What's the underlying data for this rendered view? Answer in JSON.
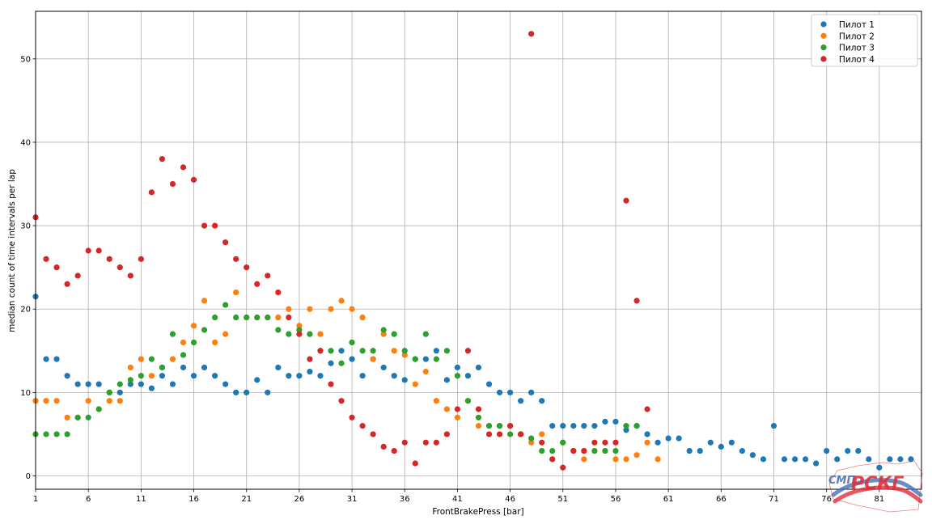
{
  "chart_data": {
    "type": "scatter",
    "xlabel": "FrontBrakePress [bar]",
    "ylabel": "median count of time intervals per lap",
    "xlim": [
      1,
      85
    ],
    "ylim": [
      -1.6,
      55.7
    ],
    "xticks": [
      1,
      6,
      11,
      16,
      21,
      26,
      31,
      36,
      41,
      46,
      51,
      56,
      61,
      66,
      71,
      76,
      81
    ],
    "yticks": [
      0,
      10,
      20,
      30,
      40,
      50
    ],
    "grid": true,
    "legend_position": "top-right",
    "series": [
      {
        "name": "Пилот 1",
        "color": "#1f77b4",
        "points": [
          [
            1,
            21.5
          ],
          [
            2,
            14
          ],
          [
            3,
            14
          ],
          [
            4,
            12
          ],
          [
            5,
            11
          ],
          [
            6,
            11
          ],
          [
            7,
            11
          ],
          [
            8,
            10
          ],
          [
            9,
            10
          ],
          [
            10,
            11
          ],
          [
            11,
            11
          ],
          [
            12,
            10.5
          ],
          [
            13,
            12
          ],
          [
            14,
            11
          ],
          [
            15,
            13
          ],
          [
            16,
            12
          ],
          [
            17,
            13
          ],
          [
            18,
            12
          ],
          [
            19,
            11
          ],
          [
            20,
            10
          ],
          [
            21,
            10
          ],
          [
            22,
            11.5
          ],
          [
            23,
            10
          ],
          [
            24,
            13
          ],
          [
            25,
            12
          ],
          [
            26,
            12
          ],
          [
            27,
            12.5
          ],
          [
            28,
            12
          ],
          [
            29,
            13.5
          ],
          [
            30,
            15
          ],
          [
            31,
            14
          ],
          [
            32,
            12
          ],
          [
            33,
            14
          ],
          [
            34,
            13
          ],
          [
            35,
            12
          ],
          [
            36,
            11.5
          ],
          [
            37,
            14
          ],
          [
            38,
            14
          ],
          [
            39,
            15
          ],
          [
            40,
            11.5
          ],
          [
            41,
            13
          ],
          [
            42,
            12
          ],
          [
            43,
            13
          ],
          [
            44,
            11
          ],
          [
            45,
            10
          ],
          [
            46,
            10
          ],
          [
            47,
            9
          ],
          [
            48,
            10
          ],
          [
            49,
            9
          ],
          [
            50,
            6
          ],
          [
            51,
            6
          ],
          [
            52,
            6
          ],
          [
            53,
            6
          ],
          [
            54,
            6
          ],
          [
            55,
            6.5
          ],
          [
            56,
            6.5
          ],
          [
            57,
            5.5
          ],
          [
            58,
            6
          ],
          [
            59,
            5
          ],
          [
            60,
            4
          ],
          [
            61,
            4.5
          ],
          [
            62,
            4.5
          ],
          [
            63,
            3
          ],
          [
            64,
            3
          ],
          [
            65,
            4
          ],
          [
            66,
            3.5
          ],
          [
            67,
            4
          ],
          [
            68,
            3
          ],
          [
            69,
            2.5
          ],
          [
            70,
            2
          ],
          [
            71,
            6
          ],
          [
            72,
            2
          ],
          [
            73,
            2
          ],
          [
            74,
            2
          ],
          [
            75,
            1.5
          ],
          [
            76,
            3
          ],
          [
            77,
            2
          ],
          [
            78,
            3
          ],
          [
            79,
            3
          ],
          [
            80,
            2
          ],
          [
            81,
            1
          ],
          [
            82,
            2
          ],
          [
            83,
            2
          ],
          [
            84,
            2
          ]
        ]
      },
      {
        "name": "Пилот 2",
        "color": "#ff7f0e",
        "points": [
          [
            1,
            9
          ],
          [
            2,
            9
          ],
          [
            3,
            9
          ],
          [
            4,
            7
          ],
          [
            5,
            7
          ],
          [
            6,
            9
          ],
          [
            7,
            8
          ],
          [
            8,
            9
          ],
          [
            9,
            9
          ],
          [
            10,
            13
          ],
          [
            11,
            14
          ],
          [
            12,
            12
          ],
          [
            13,
            13
          ],
          [
            14,
            14
          ],
          [
            15,
            16
          ],
          [
            16,
            18
          ],
          [
            17,
            21
          ],
          [
            18,
            16
          ],
          [
            19,
            17
          ],
          [
            20,
            22
          ],
          [
            21,
            19
          ],
          [
            22,
            19
          ],
          [
            23,
            19
          ],
          [
            24,
            19
          ],
          [
            25,
            20
          ],
          [
            26,
            18
          ],
          [
            27,
            20
          ],
          [
            28,
            17
          ],
          [
            29,
            20
          ],
          [
            30,
            21
          ],
          [
            31,
            20
          ],
          [
            32,
            19
          ],
          [
            33,
            14
          ],
          [
            34,
            17
          ],
          [
            35,
            15
          ],
          [
            36,
            14.5
          ],
          [
            37,
            11
          ],
          [
            38,
            12.5
          ],
          [
            39,
            9
          ],
          [
            40,
            8
          ],
          [
            41,
            7
          ],
          [
            42,
            9
          ],
          [
            43,
            6
          ],
          [
            44,
            6
          ],
          [
            45,
            6
          ],
          [
            46,
            6
          ],
          [
            47,
            5
          ],
          [
            48,
            4
          ],
          [
            49,
            5
          ],
          [
            50,
            2
          ],
          [
            51,
            4
          ],
          [
            52,
            3
          ],
          [
            53,
            2
          ],
          [
            54,
            3
          ],
          [
            55,
            3
          ],
          [
            56,
            2
          ],
          [
            57,
            2
          ],
          [
            58,
            2.5
          ],
          [
            59,
            4
          ],
          [
            60,
            2
          ]
        ]
      },
      {
        "name": "Пилот 3",
        "color": "#2ca02c",
        "points": [
          [
            1,
            5
          ],
          [
            2,
            5
          ],
          [
            3,
            5
          ],
          [
            4,
            5
          ],
          [
            5,
            7
          ],
          [
            6,
            7
          ],
          [
            7,
            8
          ],
          [
            8,
            10
          ],
          [
            9,
            11
          ],
          [
            10,
            11.5
          ],
          [
            11,
            12
          ],
          [
            12,
            14
          ],
          [
            13,
            13
          ],
          [
            14,
            17
          ],
          [
            15,
            14.5
          ],
          [
            16,
            16
          ],
          [
            17,
            17.5
          ],
          [
            18,
            19
          ],
          [
            19,
            20.5
          ],
          [
            20,
            19
          ],
          [
            21,
            19
          ],
          [
            22,
            19
          ],
          [
            23,
            19
          ],
          [
            24,
            17.5
          ],
          [
            25,
            17
          ],
          [
            26,
            17.5
          ],
          [
            27,
            17
          ],
          [
            28,
            15
          ],
          [
            29,
            15
          ],
          [
            30,
            13.5
          ],
          [
            31,
            16
          ],
          [
            32,
            15
          ],
          [
            33,
            15
          ],
          [
            34,
            17.5
          ],
          [
            35,
            17
          ],
          [
            36,
            15
          ],
          [
            37,
            14
          ],
          [
            38,
            17
          ],
          [
            39,
            14
          ],
          [
            40,
            15
          ],
          [
            41,
            12
          ],
          [
            42,
            9
          ],
          [
            43,
            7
          ],
          [
            44,
            6
          ],
          [
            45,
            6
          ],
          [
            46,
            5
          ],
          [
            47,
            5
          ],
          [
            48,
            4.5
          ],
          [
            49,
            3
          ],
          [
            50,
            3
          ],
          [
            51,
            4
          ],
          [
            52,
            3
          ],
          [
            53,
            3
          ],
          [
            54,
            3
          ],
          [
            55,
            3
          ],
          [
            56,
            3
          ],
          [
            57,
            6
          ],
          [
            58,
            6
          ]
        ]
      },
      {
        "name": "Пилот 4",
        "color": "#d62728",
        "points": [
          [
            1,
            31
          ],
          [
            2,
            26
          ],
          [
            3,
            25
          ],
          [
            4,
            23
          ],
          [
            5,
            24
          ],
          [
            6,
            27
          ],
          [
            7,
            27
          ],
          [
            8,
            26
          ],
          [
            9,
            25
          ],
          [
            10,
            24
          ],
          [
            11,
            26
          ],
          [
            12,
            34
          ],
          [
            13,
            38
          ],
          [
            14,
            35
          ],
          [
            15,
            37
          ],
          [
            16,
            35.5
          ],
          [
            17,
            30
          ],
          [
            18,
            30
          ],
          [
            19,
            28
          ],
          [
            20,
            26
          ],
          [
            21,
            25
          ],
          [
            22,
            23
          ],
          [
            23,
            24
          ],
          [
            24,
            22
          ],
          [
            25,
            19
          ],
          [
            26,
            17
          ],
          [
            27,
            14
          ],
          [
            28,
            15
          ],
          [
            29,
            11
          ],
          [
            30,
            9
          ],
          [
            31,
            7
          ],
          [
            32,
            6
          ],
          [
            33,
            5
          ],
          [
            34,
            3.5
          ],
          [
            35,
            3
          ],
          [
            36,
            4
          ],
          [
            37,
            1.5
          ],
          [
            38,
            4
          ],
          [
            39,
            4
          ],
          [
            40,
            5
          ],
          [
            41,
            8
          ],
          [
            42,
            15
          ],
          [
            43,
            8
          ],
          [
            44,
            5
          ],
          [
            45,
            5
          ],
          [
            46,
            6
          ],
          [
            47,
            5
          ],
          [
            48,
            53
          ],
          [
            49,
            4
          ],
          [
            50,
            2
          ],
          [
            51,
            1
          ],
          [
            52,
            3
          ],
          [
            53,
            3
          ],
          [
            54,
            4
          ],
          [
            55,
            4
          ],
          [
            56,
            4
          ],
          [
            57,
            33
          ],
          [
            58,
            21
          ],
          [
            59,
            8
          ]
        ]
      }
    ]
  },
  "logo": {
    "text": "СМП РСКГ",
    "colors": [
      "#e0303a",
      "#4a6fb5"
    ]
  }
}
